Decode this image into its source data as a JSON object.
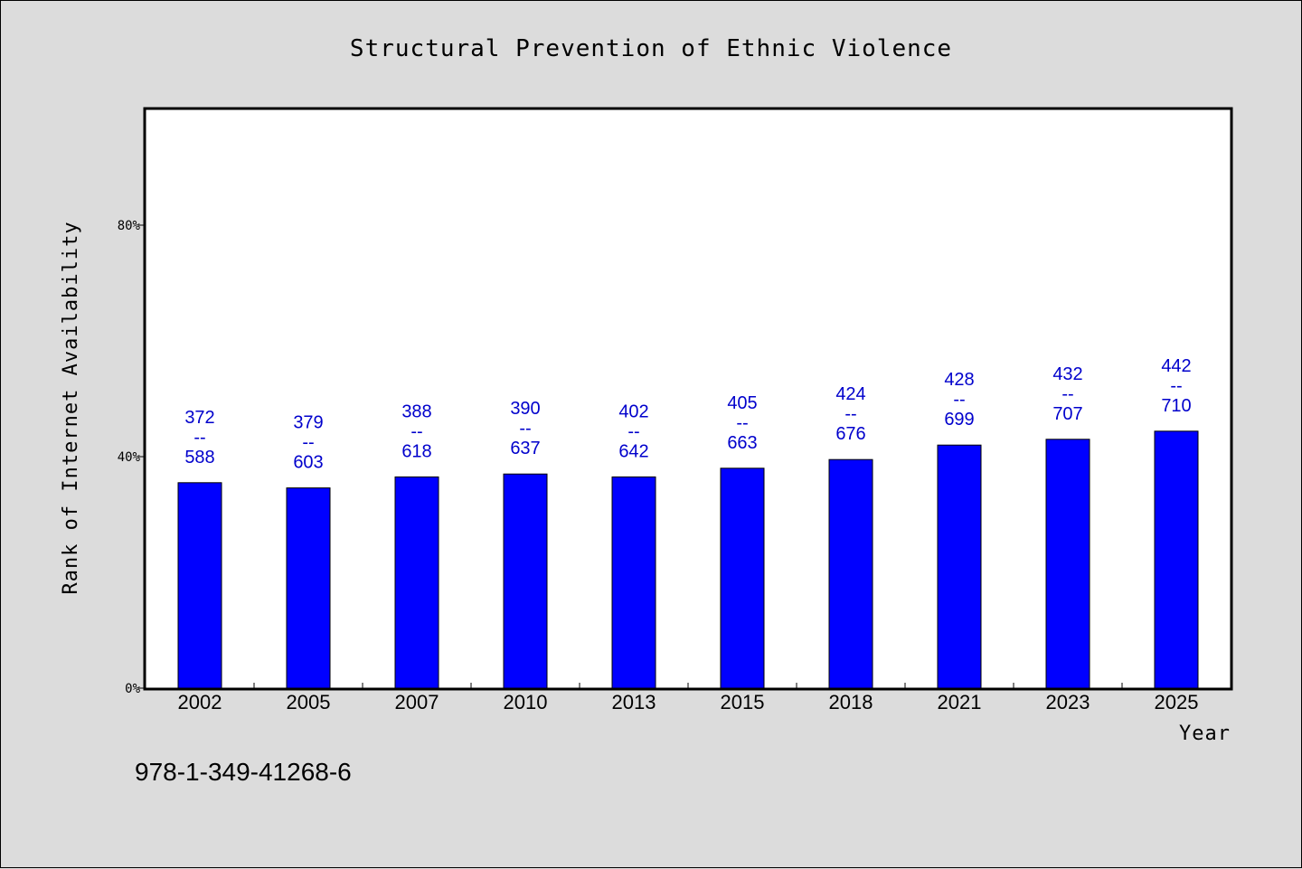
{
  "chart_data": {
    "type": "bar",
    "title": "Structural Prevention of Ethnic Violence",
    "xlabel": "Year",
    "ylabel": "Rank of Internet Availability",
    "categories": [
      "2002",
      "2005",
      "2007",
      "2010",
      "2013",
      "2015",
      "2018",
      "2021",
      "2023",
      "2025"
    ],
    "values": [
      35.5,
      34.6,
      36.5,
      37.0,
      36.5,
      38.0,
      39.5,
      42.0,
      43.0,
      44.4
    ],
    "data_labels": [
      [
        "372",
        "--",
        "588"
      ],
      [
        "379",
        "--",
        "603"
      ],
      [
        "388",
        "--",
        "618"
      ],
      [
        "390",
        "--",
        "637"
      ],
      [
        "402",
        "--",
        "642"
      ],
      [
        "405",
        "--",
        "663"
      ],
      [
        "424",
        "--",
        "676"
      ],
      [
        "428",
        "--",
        "699"
      ],
      [
        "432",
        "--",
        "707"
      ],
      [
        "442",
        "--",
        "710"
      ]
    ],
    "ylim": [
      0,
      100
    ],
    "yticks": [
      0,
      40,
      80
    ],
    "ytick_labels": [
      "0%",
      "40%",
      "80%"
    ],
    "grid": false,
    "bar_color": "#0000ff",
    "label_color": "#0000cc"
  },
  "footer_text": "978-1-349-41268-6"
}
